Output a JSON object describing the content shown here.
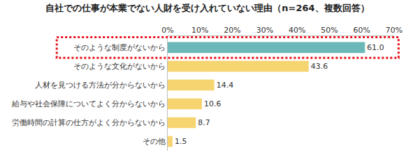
{
  "chart_data": {
    "type": "bar",
    "orientation": "horizontal",
    "title": "自社での仕事が本業でない人財を受け入れていない理由（n=264、複数回答）",
    "categories": [
      "そのような制度がないから",
      "そのような文化がないから",
      "人材を見つける方法が分からないから",
      "給与や社会保障についてよく分からないから",
      "労働時間の計算の仕方がよく分からないから",
      "その他"
    ],
    "values": [
      61.0,
      43.6,
      14.4,
      10.6,
      8.7,
      1.5
    ],
    "value_labels": [
      "61.0",
      "43.6",
      "14.4",
      "10.6",
      "8.7",
      "1.5"
    ],
    "colors": [
      "#6cb7b8",
      "#f6d470",
      "#f6d470",
      "#f6d470",
      "#f6d470",
      "#f6d470"
    ],
    "xlim": [
      0,
      70
    ],
    "xticks": [
      {
        "value": 0,
        "label": "0%"
      },
      {
        "value": 10,
        "label": "10%"
      },
      {
        "value": 20,
        "label": "20%"
      },
      {
        "value": 30,
        "label": "30%"
      },
      {
        "value": 40,
        "label": "40%"
      },
      {
        "value": 50,
        "label": "50%"
      },
      {
        "value": 60,
        "label": "60%"
      },
      {
        "value": 70,
        "label": "70%"
      }
    ],
    "grid": false,
    "data_labels": true
  }
}
